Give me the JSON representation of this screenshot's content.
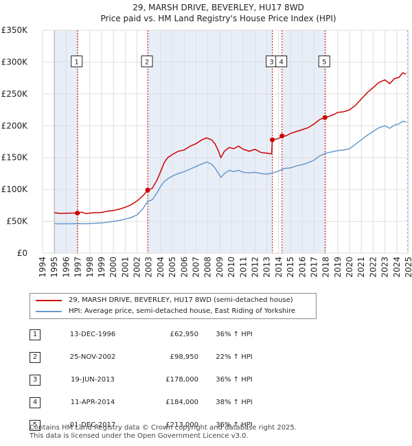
{
  "chart_data": {
    "type": "line",
    "title": "29, MARSH DRIVE, BEVERLEY, HU17 8WD",
    "subtitle": "Price paid vs. HM Land Registry's House Price Index (HPI)",
    "xlim": [
      1994,
      2025
    ],
    "ylim": [
      0,
      350000
    ],
    "x_ticks": [
      "1994",
      "1995",
      "1996",
      "1997",
      "1998",
      "1999",
      "2000",
      "2001",
      "2002",
      "2003",
      "2004",
      "2005",
      "2006",
      "2007",
      "2008",
      "2009",
      "2010",
      "2011",
      "2012",
      "2013",
      "2014",
      "2015",
      "2016",
      "2017",
      "2018",
      "2019",
      "2020",
      "2021",
      "2022",
      "2023",
      "2024",
      "2025"
    ],
    "y_ticks": [
      {
        "value": 0,
        "label": "£0"
      },
      {
        "value": 50000,
        "label": "£50K"
      },
      {
        "value": 100000,
        "label": "£100K"
      },
      {
        "value": 150000,
        "label": "£150K"
      },
      {
        "value": 200000,
        "label": "£200K"
      },
      {
        "value": 250000,
        "label": "£250K"
      },
      {
        "value": 300000,
        "label": "£300K"
      },
      {
        "value": 350000,
        "label": "£350K"
      }
    ],
    "grid": true,
    "data_start": 1995,
    "data_end": 2024.9,
    "shaded_regions": [
      [
        1995,
        1996.95
      ],
      [
        2002.9,
        2013.46
      ],
      [
        2014.28,
        2017.92
      ],
      [
        2024.9,
        2025
      ]
    ],
    "series": [
      {
        "name": "29, MARSH DRIVE, BEVERLEY, HU17 8WD (semi-detached house)",
        "color": "#cc0000",
        "points": [
          [
            1995,
            63500
          ],
          [
            1995.5,
            62500
          ],
          [
            1996,
            62800
          ],
          [
            1996.5,
            63000
          ],
          [
            1996.95,
            62950
          ],
          [
            1997.3,
            64500
          ],
          [
            1997.7,
            62000
          ],
          [
            1998,
            63000
          ],
          [
            1998.5,
            63500
          ],
          [
            1999,
            64000
          ],
          [
            1999.5,
            66000
          ],
          [
            2000,
            67000
          ],
          [
            2000.5,
            69000
          ],
          [
            2001,
            72000
          ],
          [
            2001.5,
            76000
          ],
          [
            2002,
            82000
          ],
          [
            2002.5,
            90000
          ],
          [
            2002.9,
            98950
          ],
          [
            2003.3,
            102000
          ],
          [
            2003.7,
            115000
          ],
          [
            2004,
            128000
          ],
          [
            2004.3,
            142000
          ],
          [
            2004.6,
            150000
          ],
          [
            2005,
            155000
          ],
          [
            2005.5,
            160000
          ],
          [
            2006,
            162000
          ],
          [
            2006.5,
            168000
          ],
          [
            2007,
            172000
          ],
          [
            2007.5,
            178000
          ],
          [
            2007.9,
            181000
          ],
          [
            2008.3,
            178000
          ],
          [
            2008.6,
            172000
          ],
          [
            2008.9,
            160000
          ],
          [
            2009.1,
            150000
          ],
          [
            2009.4,
            160000
          ],
          [
            2009.8,
            166000
          ],
          [
            2010.2,
            164000
          ],
          [
            2010.6,
            168000
          ],
          [
            2011,
            163000
          ],
          [
            2011.5,
            160000
          ],
          [
            2012,
            163000
          ],
          [
            2012.5,
            158000
          ],
          [
            2013,
            157000
          ],
          [
            2013.4,
            156000
          ],
          [
            2013.46,
            178000
          ],
          [
            2013.8,
            179000
          ],
          [
            2014.1,
            181000
          ],
          [
            2014.28,
            184000
          ],
          [
            2014.6,
            184000
          ],
          [
            2015,
            188000
          ],
          [
            2015.5,
            191000
          ],
          [
            2016,
            194000
          ],
          [
            2016.5,
            197000
          ],
          [
            2017,
            203000
          ],
          [
            2017.5,
            210000
          ],
          [
            2017.92,
            213000
          ],
          [
            2018.3,
            215000
          ],
          [
            2018.7,
            218000
          ],
          [
            2019,
            221000
          ],
          [
            2019.5,
            222000
          ],
          [
            2020,
            225000
          ],
          [
            2020.5,
            232000
          ],
          [
            2021,
            242000
          ],
          [
            2021.5,
            252000
          ],
          [
            2022,
            260000
          ],
          [
            2022.5,
            268000
          ],
          [
            2023,
            272000
          ],
          [
            2023.4,
            266000
          ],
          [
            2023.8,
            274000
          ],
          [
            2024.2,
            276000
          ],
          [
            2024.5,
            283000
          ],
          [
            2024.8,
            281000
          ]
        ]
      },
      {
        "name": "HPI: Average price, semi-detached house, East Riding of Yorkshire",
        "color": "#6699cc",
        "points": [
          [
            1995,
            46500
          ],
          [
            1995.5,
            46000
          ],
          [
            1996,
            46200
          ],
          [
            1996.5,
            46300
          ],
          [
            1997,
            46500
          ],
          [
            1997.5,
            46200
          ],
          [
            1998,
            46500
          ],
          [
            1998.5,
            47000
          ],
          [
            1999,
            47500
          ],
          [
            1999.5,
            48500
          ],
          [
            2000,
            50000
          ],
          [
            2000.5,
            51500
          ],
          [
            2001,
            53500
          ],
          [
            2001.5,
            56000
          ],
          [
            2002,
            60000
          ],
          [
            2002.5,
            70000
          ],
          [
            2002.9,
            81000
          ],
          [
            2003.3,
            84000
          ],
          [
            2003.7,
            95000
          ],
          [
            2004,
            105000
          ],
          [
            2004.3,
            112000
          ],
          [
            2004.6,
            117000
          ],
          [
            2005,
            121000
          ],
          [
            2005.5,
            125000
          ],
          [
            2006,
            128000
          ],
          [
            2006.5,
            132000
          ],
          [
            2007,
            136000
          ],
          [
            2007.5,
            140000
          ],
          [
            2007.9,
            143000
          ],
          [
            2008.3,
            140000
          ],
          [
            2008.6,
            134000
          ],
          [
            2008.9,
            125000
          ],
          [
            2009.1,
            119000
          ],
          [
            2009.4,
            125000
          ],
          [
            2009.8,
            130000
          ],
          [
            2010.2,
            128000
          ],
          [
            2010.6,
            130000
          ],
          [
            2011,
            127000
          ],
          [
            2011.5,
            126000
          ],
          [
            2012,
            127000
          ],
          [
            2012.5,
            125000
          ],
          [
            2013,
            124000
          ],
          [
            2013.5,
            126000
          ],
          [
            2014,
            129000
          ],
          [
            2014.5,
            133000
          ],
          [
            2015,
            134000
          ],
          [
            2015.5,
            137000
          ],
          [
            2016,
            139000
          ],
          [
            2016.5,
            142000
          ],
          [
            2017,
            146000
          ],
          [
            2017.5,
            153000
          ],
          [
            2018,
            157000
          ],
          [
            2018.5,
            159000
          ],
          [
            2019,
            161000
          ],
          [
            2019.5,
            162000
          ],
          [
            2020,
            164000
          ],
          [
            2020.5,
            171000
          ],
          [
            2021,
            178000
          ],
          [
            2021.5,
            185000
          ],
          [
            2022,
            191000
          ],
          [
            2022.5,
            197000
          ],
          [
            2023,
            200000
          ],
          [
            2023.4,
            196000
          ],
          [
            2023.8,
            201000
          ],
          [
            2024.2,
            203000
          ],
          [
            2024.5,
            207000
          ],
          [
            2024.8,
            206000
          ]
        ]
      }
    ],
    "markers": [
      {
        "num": "1",
        "x": 1996.95,
        "y": 62950
      },
      {
        "num": "2",
        "x": 2002.9,
        "y": 98950
      },
      {
        "num": "3",
        "x": 2013.46,
        "y": 178000
      },
      {
        "num": "4",
        "x": 2014.28,
        "y": 184000
      },
      {
        "num": "5",
        "x": 2017.92,
        "y": 213000
      }
    ],
    "label_y": 300000
  },
  "legend": {
    "property": "29, MARSH DRIVE, BEVERLEY, HU17 8WD (semi-detached house)",
    "hpi": "HPI: Average price, semi-detached house, East Riding of Yorkshire",
    "property_color": "#cc0000",
    "hpi_color": "#6699cc"
  },
  "sales": [
    {
      "num": "1",
      "date": "13-DEC-1996",
      "price": "£62,950",
      "delta": "36% ↑ HPI"
    },
    {
      "num": "2",
      "date": "25-NOV-2002",
      "price": "£98,950",
      "delta": "22% ↑ HPI"
    },
    {
      "num": "3",
      "date": "19-JUN-2013",
      "price": "£178,000",
      "delta": "36% ↑ HPI"
    },
    {
      "num": "4",
      "date": "11-APR-2014",
      "price": "£184,000",
      "delta": "38% ↑ HPI"
    },
    {
      "num": "5",
      "date": "01-DEC-2017",
      "price": "£213,000",
      "delta": "36% ↑ HPI"
    }
  ],
  "footer": {
    "line1": "Contains HM Land Registry data © Crown copyright and database right 2025.",
    "line2": "This data is licensed under the Open Government Licence v3.0."
  }
}
